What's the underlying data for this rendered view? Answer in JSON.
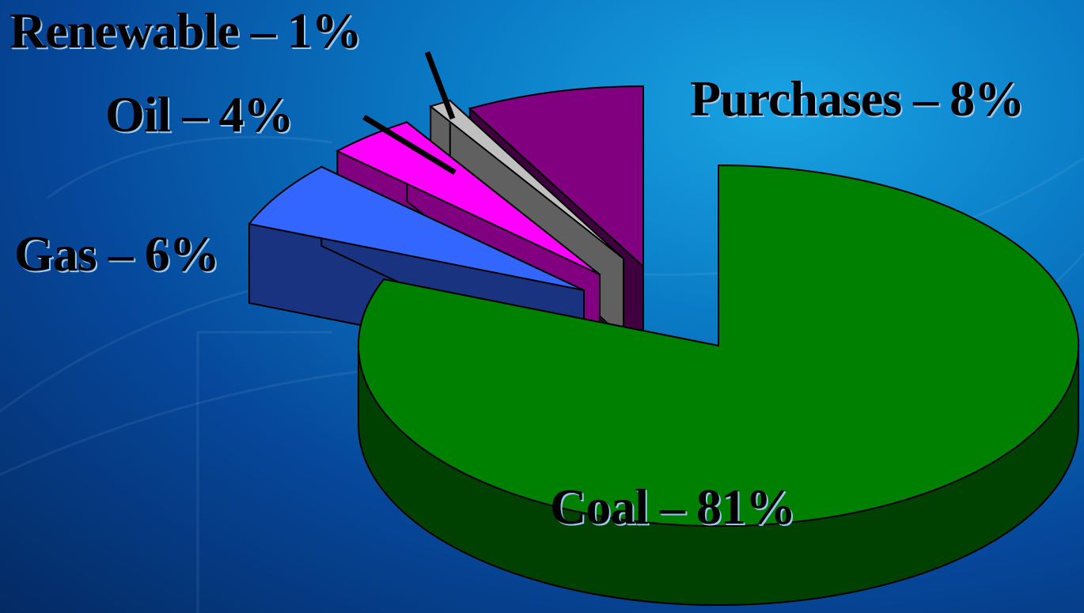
{
  "chart_data": {
    "type": "pie",
    "style": "3d-exploded",
    "slices": [
      {
        "name": "Coal",
        "label": "Coal – 81%",
        "value": 81,
        "color": "#008000",
        "side": "#004000"
      },
      {
        "name": "Gas",
        "label": "Gas – 6%",
        "value": 6,
        "color": "#3366ff",
        "side": "#1a3380"
      },
      {
        "name": "Oil",
        "label": "Oil – 4%",
        "value": 4,
        "color": "#ff00ff",
        "side": "#800080"
      },
      {
        "name": "Renewable",
        "label": "Renewable – 1%",
        "value": 1,
        "color": "#c0c0c0",
        "side": "#606060"
      },
      {
        "name": "Purchases",
        "label": "Purchases – 8%",
        "value": 8,
        "color": "#800080",
        "side": "#400040"
      }
    ],
    "legend": "none",
    "title": ""
  }
}
